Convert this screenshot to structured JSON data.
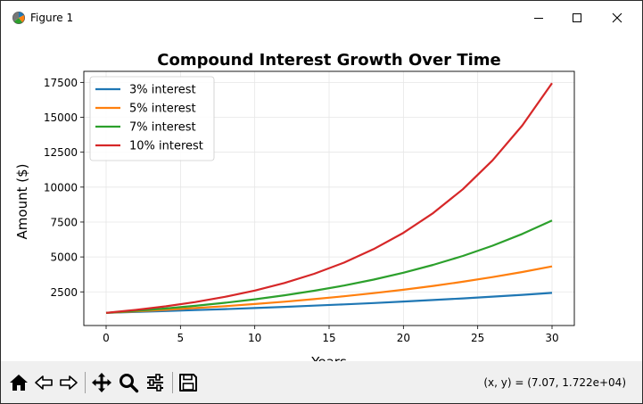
{
  "window": {
    "title": "Figure 1",
    "icon": "matplotlib-icon",
    "controls": [
      "minimize-icon",
      "maximize-icon",
      "close-icon"
    ]
  },
  "toolbar": {
    "buttons": [
      {
        "name": "home",
        "icon": "home-icon"
      },
      {
        "name": "back",
        "icon": "back-arrow-icon"
      },
      {
        "name": "forward",
        "icon": "forward-arrow-icon"
      },
      {
        "name": "pan",
        "icon": "move-icon"
      },
      {
        "name": "zoom",
        "icon": "zoom-icon"
      },
      {
        "name": "configure",
        "icon": "sliders-icon"
      },
      {
        "name": "save",
        "icon": "save-icon"
      }
    ],
    "coordinates": "(x, y) = (7.07, 1.722e+04)"
  },
  "chart_data": {
    "type": "line",
    "title": "Compound Interest Growth Over Time",
    "xlabel": "Years",
    "ylabel": "Amount ($)",
    "xlim": [
      -1.5,
      31.5
    ],
    "ylim": [
      90,
      18290
    ],
    "xticks": [
      0,
      5,
      10,
      15,
      20,
      25,
      30
    ],
    "yticks": [
      2500,
      5000,
      7500,
      10000,
      12500,
      15000,
      17500
    ],
    "ytick_labels": [
      "2500",
      "5000",
      "7500",
      "10000",
      "12500",
      "15000",
      "17500"
    ],
    "grid": true,
    "legend_position": "top-left",
    "x": [
      0,
      2,
      4,
      6,
      8,
      10,
      12,
      14,
      16,
      18,
      20,
      22,
      24,
      26,
      28,
      30
    ],
    "series": [
      {
        "name": "3% interest",
        "color": "#1f77b4",
        "values": [
          1000,
          1061,
          1126,
          1194,
          1267,
          1344,
          1426,
          1513,
          1605,
          1702,
          1806,
          1916,
          2033,
          2157,
          2288,
          2427
        ]
      },
      {
        "name": "5% interest",
        "color": "#ff7f0e",
        "values": [
          1000,
          1103,
          1216,
          1340,
          1477,
          1629,
          1796,
          1980,
          2183,
          2407,
          2653,
          2925,
          3225,
          3556,
          3920,
          4322
        ]
      },
      {
        "name": "7% interest",
        "color": "#2ca02c",
        "values": [
          1000,
          1145,
          1311,
          1501,
          1718,
          1967,
          2252,
          2579,
          2952,
          3380,
          3870,
          4430,
          5072,
          5807,
          6649,
          7612
        ]
      },
      {
        "name": "10% interest",
        "color": "#d62728",
        "values": [
          1000,
          1210,
          1464,
          1772,
          2144,
          2594,
          3138,
          3797,
          4595,
          5560,
          6727,
          8140,
          9850,
          11918,
          14421,
          17449
        ]
      }
    ]
  }
}
